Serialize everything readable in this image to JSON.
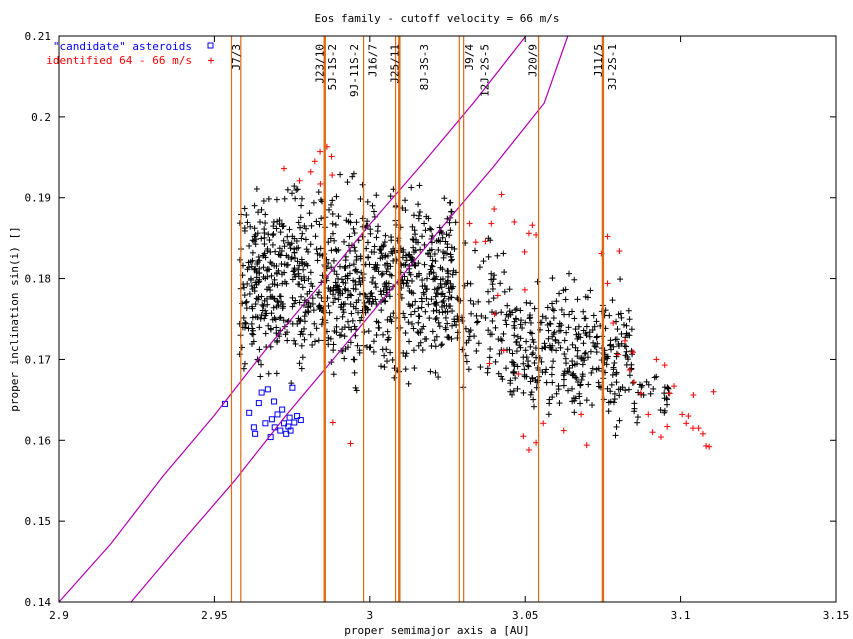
{
  "chart_data": {
    "type": "scatter",
    "title": "Eos family - cutoff velocity = 66 m/s",
    "xlabel": "proper semimajor axis a [AU]",
    "ylabel": "proper inclination sin(i) []",
    "xlim": [
      2.9,
      3.15
    ],
    "ylim": [
      0.14,
      0.21
    ],
    "xticks": [
      2.9,
      2.95,
      3.0,
      3.05,
      3.1,
      3.15
    ],
    "xtick_labels": [
      "2.9",
      "2.95",
      "3",
      "3.05",
      "3.1",
      "3.15"
    ],
    "yticks": [
      0.14,
      0.15,
      0.16,
      0.17,
      0.18,
      0.19,
      0.2,
      0.21
    ],
    "ytick_labels": [
      "0.14",
      "0.15",
      "0.16",
      "0.17",
      "0.18",
      "0.19",
      "0.2",
      "0.21"
    ],
    "grid": false,
    "legend_position": "top-left",
    "colors": {
      "family": "#000000",
      "candidate": "#0000ff",
      "identified": "#ff0000",
      "resonance": "#e06a14",
      "separatrix": "#b000b0"
    },
    "series": [
      {
        "name": "\"candidate\" asteroids",
        "marker": "square",
        "color": "#0000ff",
        "points": [
          [
            2.9534,
            0.1645
          ],
          [
            2.9612,
            0.1634
          ],
          [
            2.9627,
            0.1616
          ],
          [
            2.9631,
            0.1608
          ],
          [
            2.9643,
            0.1646
          ],
          [
            2.9652,
            0.1659
          ],
          [
            2.9664,
            0.1621
          ],
          [
            2.9672,
            0.1663
          ],
          [
            2.9681,
            0.1604
          ],
          [
            2.9685,
            0.1626
          ],
          [
            2.9694,
            0.1616
          ],
          [
            2.9703,
            0.1632
          ],
          [
            2.9712,
            0.1612
          ],
          [
            2.9718,
            0.1638
          ],
          [
            2.9724,
            0.1621
          ],
          [
            2.9731,
            0.1608
          ],
          [
            2.9738,
            0.1617
          ],
          [
            2.9742,
            0.1628
          ],
          [
            2.9751,
            0.1665
          ],
          [
            2.9757,
            0.1622
          ],
          [
            2.9766,
            0.163
          ],
          [
            2.9692,
            0.1648
          ],
          [
            2.9745,
            0.1612
          ],
          [
            2.9778,
            0.1625
          ]
        ]
      },
      {
        "name": "identified 64 - 66 m/s",
        "marker": "plus",
        "color": "#ff0000",
        "points": [
          [
            2.9724,
            0.1936
          ],
          [
            2.981,
            0.1932
          ],
          [
            2.9823,
            0.1945
          ],
          [
            2.984,
            0.1957
          ],
          [
            2.9862,
            0.1963
          ],
          [
            2.9879,
            0.1928
          ],
          [
            2.9841,
            0.1917
          ],
          [
            2.9774,
            0.1921
          ],
          [
            2.9877,
            0.1951
          ],
          [
            2.9938,
            0.1596
          ],
          [
            2.9881,
            0.1622
          ],
          [
            3.0321,
            0.1868
          ],
          [
            3.0341,
            0.1845
          ],
          [
            3.0372,
            0.1846
          ],
          [
            3.0391,
            0.1868
          ],
          [
            3.04,
            0.1886
          ],
          [
            3.0424,
            0.1904
          ],
          [
            3.0412,
            0.1779
          ],
          [
            3.0401,
            0.1756
          ],
          [
            3.0385,
            0.1695
          ],
          [
            3.0431,
            0.1711
          ],
          [
            3.0465,
            0.187
          ],
          [
            3.0498,
            0.1833
          ],
          [
            3.0512,
            0.1856
          ],
          [
            3.0535,
            0.1854
          ],
          [
            3.0523,
            0.1866
          ],
          [
            3.0499,
            0.1786
          ],
          [
            3.0478,
            0.1682
          ],
          [
            3.0494,
            0.1605
          ],
          [
            3.0512,
            0.1588
          ],
          [
            3.0535,
            0.1597
          ],
          [
            3.0558,
            0.1621
          ],
          [
            3.0745,
            0.1831
          ],
          [
            3.0765,
            0.1852
          ],
          [
            3.0803,
            0.1834
          ],
          [
            3.0765,
            0.1794
          ],
          [
            3.0783,
            0.1745
          ],
          [
            3.0799,
            0.1706
          ],
          [
            3.0821,
            0.1723
          ],
          [
            3.0836,
            0.1687
          ],
          [
            3.085,
            0.1672
          ],
          [
            3.0872,
            0.1658
          ],
          [
            3.0896,
            0.1632
          ],
          [
            3.091,
            0.161
          ],
          [
            3.0922,
            0.17
          ],
          [
            3.0949,
            0.1693
          ],
          [
            3.0965,
            0.1658
          ],
          [
            3.0979,
            0.1667
          ],
          [
            3.1005,
            0.1632
          ],
          [
            3.1018,
            0.1621
          ],
          [
            3.1025,
            0.163
          ],
          [
            3.104,
            0.1615
          ],
          [
            3.1058,
            0.1615
          ],
          [
            3.1072,
            0.1608
          ],
          [
            3.1082,
            0.1593
          ],
          [
            3.1092,
            0.1592
          ],
          [
            3.1106,
            0.166
          ],
          [
            3.1041,
            0.1656
          ],
          [
            3.0937,
            0.1604
          ],
          [
            3.0957,
            0.1617
          ],
          [
            3.0847,
            0.1709
          ],
          [
            3.0698,
            0.1594
          ],
          [
            3.068,
            0.1632
          ],
          [
            3.0624,
            0.1612
          ]
        ]
      }
    ],
    "lines": [
      {
        "label": "J7/3",
        "a": 2.9555,
        "thick": false
      },
      {
        "label": "J7/3",
        "a": 2.9585,
        "thick": false
      },
      {
        "label": "J23/10",
        "a": 2.9855,
        "thick": true
      },
      {
        "label": "5J-1S-2",
        "a": 2.9855,
        "thick": false
      },
      {
        "label": "9J-11S-2",
        "a": 2.998,
        "thick": false
      },
      {
        "label": "J16/7",
        "a": 3.0083,
        "thick": false
      },
      {
        "label": "J25/11",
        "a": 3.0095,
        "thick": true
      },
      {
        "label": "8J-3S-3",
        "a": 3.0096,
        "thick": false
      },
      {
        "label": "J9/4",
        "a": 3.0288,
        "thick": false
      },
      {
        "label": "12J-2S-5",
        "a": 3.0302,
        "thick": false
      },
      {
        "label": "J20/9",
        "a": 3.0543,
        "thick": false
      },
      {
        "label": "J11/5",
        "a": 3.075,
        "thick": true
      },
      {
        "label": "3J-2S-1",
        "a": 3.075,
        "thick": false
      }
    ],
    "resonance_labels": [
      {
        "text": "J7/3",
        "a": 2.9585
      },
      {
        "text": "J23/10",
        "a": 2.9855
      },
      {
        "text": "5J-1S-2",
        "a": 2.9895
      },
      {
        "text": "9J-11S-2",
        "a": 2.9965
      },
      {
        "text": "J16/7",
        "a": 3.0025
      },
      {
        "text": "J25/11",
        "a": 3.0095
      },
      {
        "text": "8J-3S-3",
        "a": 3.019
      },
      {
        "text": "J9/4",
        "a": 3.0335
      },
      {
        "text": "12J-2S-5",
        "a": 3.0385
      },
      {
        "text": "J20/9",
        "a": 3.054
      },
      {
        "text": "J11/5",
        "a": 3.075
      },
      {
        "text": "3J-2S-1",
        "a": 3.0795
      }
    ],
    "separatrices": [
      {
        "name": "left",
        "points": [
          [
            2.9,
            0.14
          ],
          [
            2.9167,
            0.1472
          ],
          [
            2.9333,
            0.1555
          ],
          [
            2.95,
            0.1631
          ],
          [
            2.9667,
            0.1713
          ],
          [
            2.9833,
            0.1789
          ],
          [
            3.0,
            0.1867
          ],
          [
            3.0167,
            0.1941
          ],
          [
            3.0333,
            0.2017
          ],
          [
            3.0502,
            0.21
          ]
        ]
      },
      {
        "name": "right",
        "points": [
          [
            2.9232,
            0.14
          ],
          [
            2.9399,
            0.1476
          ],
          [
            2.9565,
            0.155
          ],
          [
            2.9731,
            0.1631
          ],
          [
            2.9897,
            0.1707
          ],
          [
            3.0063,
            0.1784
          ],
          [
            3.0229,
            0.1862
          ],
          [
            3.0395,
            0.1937
          ],
          [
            3.0561,
            0.2017
          ],
          [
            3.0637,
            0.21
          ]
        ]
      }
    ],
    "family_clusters": [
      {
        "a": [
          2.958,
          3.028
        ],
        "i": [
          0.164,
          0.195
        ],
        "count": 980
      },
      {
        "a": [
          3.028,
          3.045
        ],
        "i": [
          0.163,
          0.188
        ],
        "count": 90
      },
      {
        "a": [
          3.045,
          3.085
        ],
        "i": [
          0.159,
          0.183
        ],
        "count": 340
      },
      {
        "a": [
          3.085,
          3.097
        ],
        "i": [
          0.161,
          0.17
        ],
        "count": 30
      }
    ]
  }
}
